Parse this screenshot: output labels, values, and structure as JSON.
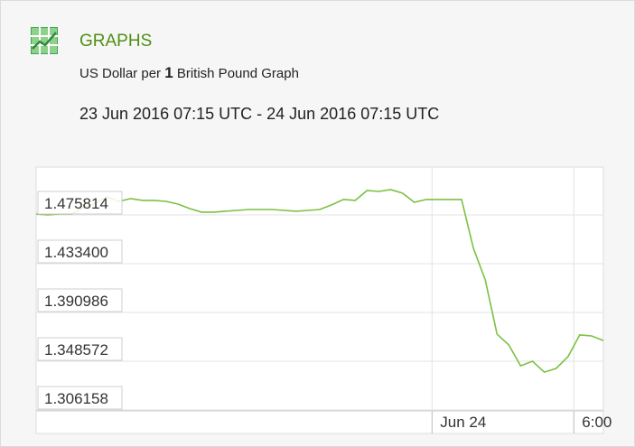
{
  "chart_data": {
    "type": "line",
    "title": "GRAPHS",
    "subtitle": [
      "US Dollar per",
      "1",
      "British Pound Graph"
    ],
    "period": "23 Jun 2016 07:15 UTC - 24 Jun 2016 07:15 UTC",
    "x": [
      "2016-06-23T07:15",
      "2016-06-23T07:45",
      "2016-06-23T08:15",
      "2016-06-23T08:45",
      "2016-06-23T09:15",
      "2016-06-23T09:45",
      "2016-06-23T10:15",
      "2016-06-23T10:45",
      "2016-06-23T11:15",
      "2016-06-23T11:45",
      "2016-06-23T12:15",
      "2016-06-23T12:45",
      "2016-06-23T13:15",
      "2016-06-23T13:45",
      "2016-06-23T14:15",
      "2016-06-23T14:45",
      "2016-06-23T15:15",
      "2016-06-23T15:45",
      "2016-06-23T16:15",
      "2016-06-23T16:45",
      "2016-06-23T17:15",
      "2016-06-23T17:45",
      "2016-06-23T18:15",
      "2016-06-23T18:45",
      "2016-06-23T19:15",
      "2016-06-23T19:45",
      "2016-06-23T20:15",
      "2016-06-23T20:45",
      "2016-06-23T21:15",
      "2016-06-23T21:45",
      "2016-06-23T22:15",
      "2016-06-23T22:45",
      "2016-06-23T23:15",
      "2016-06-23T23:45",
      "2016-06-24T00:15",
      "2016-06-24T00:45",
      "2016-06-24T01:15",
      "2016-06-24T01:45",
      "2016-06-24T02:15",
      "2016-06-24T02:45",
      "2016-06-24T03:15",
      "2016-06-24T03:45",
      "2016-06-24T04:15",
      "2016-06-24T04:45",
      "2016-06-24T05:15",
      "2016-06-24T05:45",
      "2016-06-24T06:15",
      "2016-06-24T06:45",
      "2016-06-24T07:15"
    ],
    "series": [
      {
        "color": "#7cc043",
        "values": [
          1.4766,
          1.4758,
          1.4766,
          1.4766,
          1.4821,
          1.486,
          1.4915,
          1.4876,
          1.49,
          1.4884,
          1.4884,
          1.4876,
          1.4852,
          1.4813,
          1.4782,
          1.4782,
          1.479,
          1.4797,
          1.4805,
          1.4805,
          1.4805,
          1.4797,
          1.479,
          1.4797,
          1.4805,
          1.4845,
          1.4892,
          1.4884,
          1.497,
          1.4962,
          1.4978,
          1.4947,
          1.4868,
          1.4892,
          1.4892,
          1.4892,
          1.4892,
          1.4468,
          1.4193,
          1.3721,
          1.3627,
          1.3446,
          1.3486,
          1.3391,
          1.3423,
          1.3525,
          1.3714,
          1.3706,
          1.3666
        ]
      }
    ],
    "xlim": [
      "2016-06-23T07:15",
      "2016-06-24T07:15"
    ],
    "xticks": [
      {
        "value": "2016-06-24T00:00",
        "label": "Jun 24"
      },
      {
        "value": "2016-06-24T06:00",
        "label": "6:00"
      }
    ],
    "ylim": [
      1.3054,
      1.5174
    ],
    "yticks": [
      {
        "value": 1.475814,
        "label": "1.475814"
      },
      {
        "value": 1.4334,
        "label": "1.433400"
      },
      {
        "value": 1.390986,
        "label": "1.390986"
      },
      {
        "value": 1.348572,
        "label": "1.348572"
      },
      {
        "value": 1.306158,
        "label": "1.306158"
      }
    ],
    "grid": true
  }
}
